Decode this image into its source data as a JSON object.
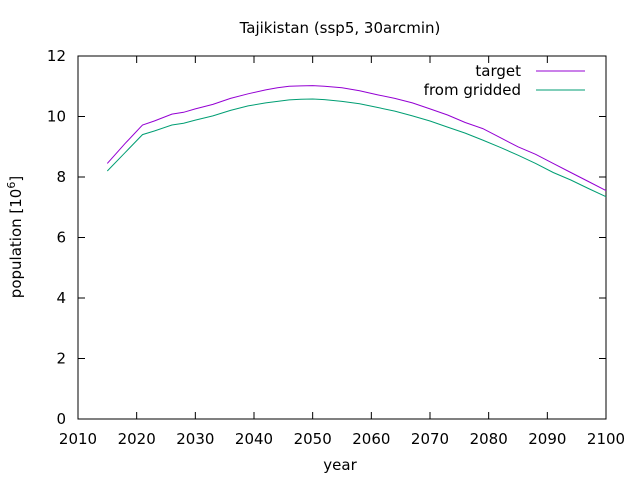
{
  "chart_data": {
    "type": "line",
    "title": "Tajikistan (ssp5, 30arcmin)",
    "xlabel": "year",
    "ylabel": "population [10",
    "ylabel_sup": "6",
    "ylabel_end": "]",
    "xlim": [
      2010,
      2100
    ],
    "ylim": [
      0,
      12
    ],
    "xticks": [
      2010,
      2020,
      2030,
      2040,
      2050,
      2060,
      2070,
      2080,
      2090,
      2100
    ],
    "yticks": [
      0,
      2,
      4,
      6,
      8,
      10,
      12
    ],
    "grid": false,
    "legend_position": "top-right",
    "series": [
      {
        "name": "target",
        "color": "#9400d3",
        "x": [
          2015,
          2018,
          2021,
          2023,
          2026,
          2028,
          2030,
          2033,
          2036,
          2039,
          2042,
          2044,
          2046,
          2048,
          2050,
          2052,
          2055,
          2058,
          2061,
          2064,
          2067,
          2070,
          2073,
          2076,
          2079,
          2082,
          2085,
          2088,
          2091,
          2094,
          2097,
          2100
        ],
        "y": [
          8.45,
          9.1,
          9.72,
          9.85,
          10.08,
          10.14,
          10.25,
          10.4,
          10.6,
          10.75,
          10.88,
          10.95,
          11.0,
          11.01,
          11.02,
          11.0,
          10.95,
          10.85,
          10.72,
          10.6,
          10.45,
          10.25,
          10.05,
          9.8,
          9.6,
          9.3,
          9.0,
          8.75,
          8.45,
          8.15,
          7.85,
          7.55
        ]
      },
      {
        "name": "from gridded",
        "color": "#009e73",
        "x": [
          2015,
          2018,
          2021,
          2023,
          2026,
          2028,
          2030,
          2033,
          2036,
          2039,
          2042,
          2044,
          2046,
          2048,
          2050,
          2052,
          2055,
          2058,
          2061,
          2064,
          2067,
          2070,
          2073,
          2076,
          2079,
          2082,
          2085,
          2088,
          2091,
          2094,
          2097,
          2100
        ],
        "y": [
          8.2,
          8.8,
          9.4,
          9.52,
          9.72,
          9.78,
          9.88,
          10.02,
          10.2,
          10.35,
          10.45,
          10.5,
          10.55,
          10.57,
          10.58,
          10.56,
          10.5,
          10.42,
          10.3,
          10.18,
          10.02,
          9.85,
          9.65,
          9.45,
          9.22,
          8.98,
          8.72,
          8.45,
          8.15,
          7.9,
          7.62,
          7.35
        ]
      }
    ]
  }
}
